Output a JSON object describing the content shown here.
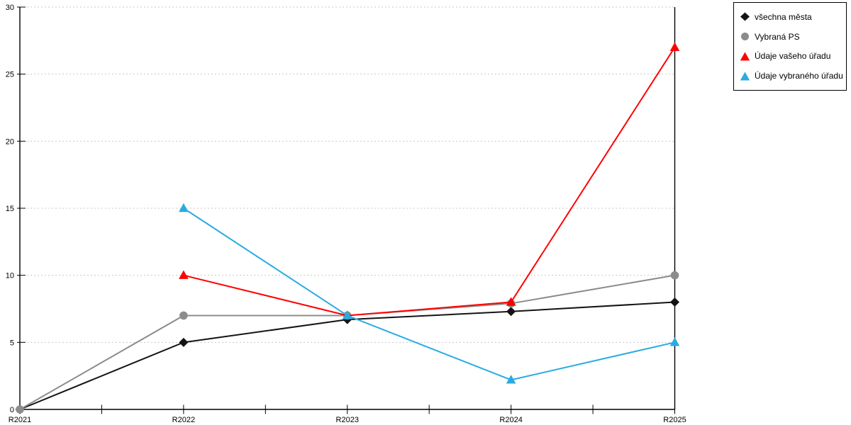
{
  "chart_data": {
    "type": "line",
    "categories": [
      "R2021",
      "R2022",
      "R2023",
      "R2024",
      "R2025"
    ],
    "series": [
      {
        "name": "všechna města",
        "color": "#141414",
        "marker": "diamond",
        "values": [
          0,
          5,
          6.7,
          7.3,
          8
        ]
      },
      {
        "name": "Vybraná PS",
        "color": "#8C8C8C",
        "marker": "circle",
        "values": [
          0,
          7,
          7,
          7.9,
          10
        ]
      },
      {
        "name": "Údaje vašeho úřadu",
        "color": "#FF0000",
        "marker": "triangle",
        "values": [
          null,
          10,
          7,
          8,
          27
        ]
      },
      {
        "name": "Údaje vybraného úřadu",
        "color": "#29ABE2",
        "marker": "triangle",
        "values": [
          null,
          15,
          7,
          2.2,
          5
        ]
      }
    ],
    "ylim": [
      0,
      30
    ],
    "yticks": [
      0,
      5,
      10,
      15,
      20,
      25,
      30
    ],
    "xlabel": "",
    "ylabel": "",
    "title": "",
    "grid": "horizontal-dashed",
    "legend_position": "top-right"
  },
  "colors": {
    "grid": "#C8C8C8",
    "axis": "#000000",
    "background": "#FFFFFF",
    "tick_label": "#000000"
  }
}
